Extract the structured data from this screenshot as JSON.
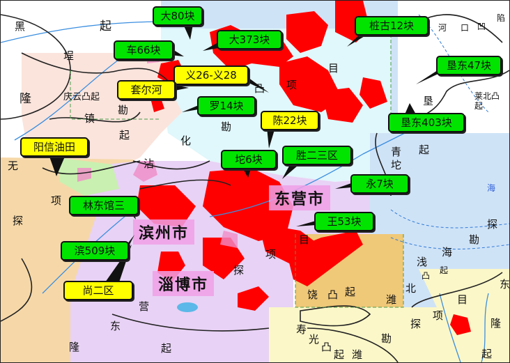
{
  "colors": {
    "callout_green": "#00e400",
    "callout_yellow": "#ffff00",
    "oil_field": "#ff0000",
    "city_bg": "#f0a0e6",
    "sea": "#cfe3f7"
  },
  "cities": [
    "东营市",
    "滨州市",
    "淄博市"
  ],
  "callouts": [
    {
      "label": "大80块",
      "color": "green"
    },
    {
      "label": "大373块",
      "color": "green"
    },
    {
      "label": "桩古12块",
      "color": "green"
    },
    {
      "label": "车66块",
      "color": "green"
    },
    {
      "label": "义26-义28",
      "color": "yellow"
    },
    {
      "label": "套尔河",
      "color": "yellow"
    },
    {
      "label": "罗14块",
      "color": "green"
    },
    {
      "label": "陈22块",
      "color": "yellow"
    },
    {
      "label": "垦东47块",
      "color": "green"
    },
    {
      "label": "垦东403块",
      "color": "green"
    },
    {
      "label": "阳信油田",
      "color": "yellow"
    },
    {
      "label": "坨6块",
      "color": "green"
    },
    {
      "label": "胜二三区",
      "color": "green"
    },
    {
      "label": "永7块",
      "color": "green"
    },
    {
      "label": "林东馆三",
      "color": "green"
    },
    {
      "label": "王53块",
      "color": "green"
    },
    {
      "label": "滨509块",
      "color": "green"
    },
    {
      "label": "尚二区",
      "color": "yellow"
    }
  ],
  "geo_labels": [
    "黑",
    "起",
    "埕",
    "隆",
    "庆云凸起",
    "镇",
    "勘",
    "起",
    "化",
    "沾",
    "无",
    "项",
    "探",
    "凸",
    "勘",
    "目",
    "项",
    "河",
    "口",
    "凹",
    "陷",
    "莱北凸起",
    "垦",
    "起",
    "青",
    "坨",
    "营",
    "东",
    "隆",
    "起",
    "探",
    "目",
    "项",
    "海",
    "探",
    "勘",
    "海",
    "浅",
    "凸",
    "起",
    "北",
    "饶",
    "凸",
    "起",
    "潍",
    "寿",
    "光",
    "凸",
    "起",
    "潍",
    "目",
    "项",
    "探",
    "勘",
    "隆",
    "起",
    "东"
  ]
}
